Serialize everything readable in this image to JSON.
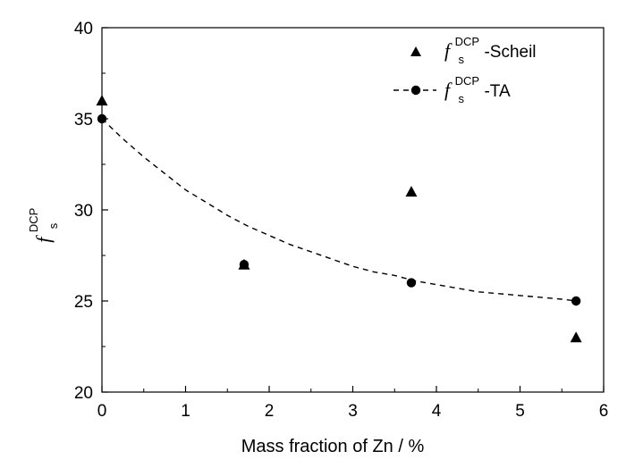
{
  "chart_data": {
    "type": "scatter",
    "xlabel": "Mass fraction of Zn / %",
    "ylabel": {
      "base": "f",
      "sub": "s",
      "sup": "DCP"
    },
    "xlim": [
      0,
      6
    ],
    "ylim": [
      20,
      40
    ],
    "xticks": [
      "0",
      "1",
      "2",
      "3",
      "4",
      "5",
      "6"
    ],
    "yticks": [
      "20",
      "25",
      "30",
      "35",
      "40"
    ],
    "legend_position": "top-right",
    "grid": false,
    "series": [
      {
        "name": "-Scheil",
        "label_base": "f",
        "label_sub": "s",
        "label_sup": "DCP",
        "marker": "triangle",
        "line": "none",
        "x": [
          0,
          1.7,
          3.7,
          5.67
        ],
        "y": [
          36,
          27,
          31,
          23
        ]
      },
      {
        "name": "-TA",
        "label_base": "f",
        "label_sub": "s",
        "label_sup": "DCP",
        "marker": "circle",
        "line": "dashed fit curve",
        "x": [
          0,
          1.7,
          3.7,
          5.67
        ],
        "y": [
          35,
          27,
          26,
          25
        ]
      }
    ],
    "fit_curve": {
      "series": "-TA",
      "x": [
        0,
        0.25,
        0.5,
        0.75,
        1,
        1.25,
        1.5,
        1.75,
        2,
        2.25,
        2.5,
        2.75,
        3,
        3.25,
        3.5,
        3.75,
        4,
        4.25,
        4.5,
        4.75,
        5,
        5.25,
        5.5,
        5.67
      ],
      "y": [
        35.0,
        33.9,
        32.9,
        32.0,
        31.1,
        30.4,
        29.7,
        29.1,
        28.6,
        28.1,
        27.7,
        27.3,
        26.9,
        26.6,
        26.4,
        26.1,
        25.9,
        25.7,
        25.5,
        25.4,
        25.3,
        25.2,
        25.1,
        25.0
      ]
    }
  }
}
